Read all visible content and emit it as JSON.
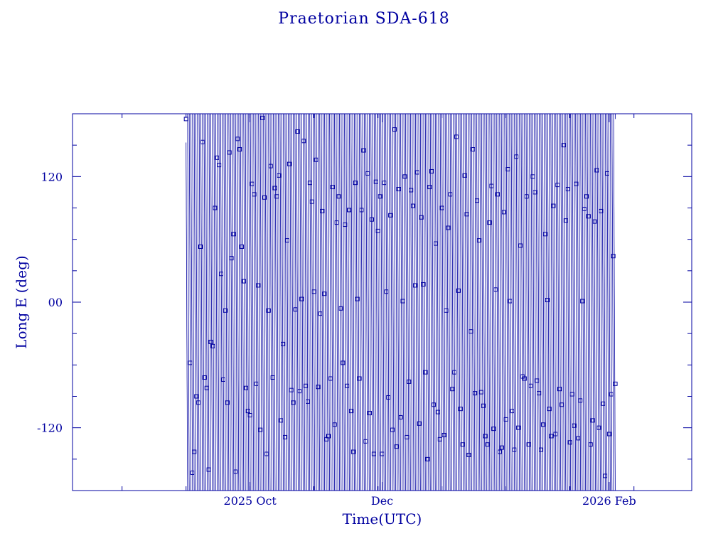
{
  "chart_data": {
    "type": "scatter",
    "title": "Praetorian SDA-618",
    "xlabel": "Time(UTC)",
    "ylabel": "Long E (deg)",
    "ylim": [
      -180,
      180
    ],
    "xlim_days": [
      0,
      300
    ],
    "y_ticks": [
      {
        "value": 120,
        "label": "120"
      },
      {
        "value": 0,
        "label": "00"
      },
      {
        "value": -120,
        "label": "-120"
      }
    ],
    "x_ticks": [
      {
        "value": 86,
        "label": "2025 Oct"
      },
      {
        "value": 150,
        "label": "Dec"
      },
      {
        "value": 260,
        "label": "2026 Feb"
      }
    ],
    "data_window_days": [
      55,
      263
    ],
    "series": [
      {
        "marker": "square",
        "line": "connected",
        "color": "#0000a0",
        "description_points": "longitude wraps rapidly across -180..180 every ~0.8 day; sampled markers listed",
        "points": [
          [
            55,
            175
          ],
          [
            57,
            -58
          ],
          [
            58,
            -163
          ],
          [
            59,
            -143
          ],
          [
            60,
            -90
          ],
          [
            61,
            -96
          ],
          [
            62,
            53
          ],
          [
            63,
            153
          ],
          [
            64,
            -72
          ],
          [
            65,
            -82
          ],
          [
            66,
            -160
          ],
          [
            67,
            -38
          ],
          [
            68,
            -42
          ],
          [
            69,
            90
          ],
          [
            70,
            138
          ],
          [
            71,
            131
          ],
          [
            72,
            27
          ],
          [
            73,
            -74
          ],
          [
            74,
            -8
          ],
          [
            75,
            -96
          ],
          [
            76,
            143
          ],
          [
            77,
            42
          ],
          [
            78,
            65
          ],
          [
            79,
            -162
          ],
          [
            80,
            156
          ],
          [
            81,
            146
          ],
          [
            82,
            53
          ],
          [
            83,
            20
          ],
          [
            84,
            -82
          ],
          [
            85,
            -104
          ],
          [
            86,
            -108
          ],
          [
            87,
            113
          ],
          [
            88,
            103
          ],
          [
            89,
            -78
          ],
          [
            90,
            16
          ],
          [
            91,
            -122
          ],
          [
            92,
            176
          ],
          [
            93,
            100
          ],
          [
            94,
            -145
          ],
          [
            95,
            -8
          ],
          [
            96,
            130
          ],
          [
            97,
            -72
          ],
          [
            98,
            109
          ],
          [
            99,
            101
          ],
          [
            100,
            121
          ],
          [
            101,
            -113
          ],
          [
            102,
            -40
          ],
          [
            103,
            -129
          ],
          [
            104,
            59
          ],
          [
            105,
            132
          ],
          [
            106,
            -84
          ],
          [
            107,
            -96
          ],
          [
            108,
            -7
          ],
          [
            109,
            163
          ],
          [
            110,
            -85
          ],
          [
            111,
            3
          ],
          [
            112,
            154
          ],
          [
            113,
            -80
          ],
          [
            114,
            -95
          ],
          [
            115,
            114
          ],
          [
            116,
            96
          ],
          [
            117,
            10
          ],
          [
            118,
            136
          ],
          [
            119,
            -81
          ],
          [
            120,
            -11
          ],
          [
            121,
            87
          ],
          [
            122,
            8
          ],
          [
            123,
            -131
          ],
          [
            124,
            -128
          ],
          [
            125,
            -73
          ],
          [
            126,
            110
          ],
          [
            127,
            -117
          ],
          [
            128,
            76
          ],
          [
            129,
            101
          ],
          [
            130,
            -6
          ],
          [
            131,
            -58
          ],
          [
            132,
            74
          ],
          [
            133,
            -80
          ],
          [
            134,
            88
          ],
          [
            135,
            -104
          ],
          [
            136,
            -143
          ],
          [
            137,
            114
          ],
          [
            138,
            3
          ],
          [
            139,
            -73
          ],
          [
            140,
            88
          ],
          [
            141,
            145
          ],
          [
            142,
            -133
          ],
          [
            143,
            123
          ],
          [
            144,
            -106
          ],
          [
            145,
            79
          ],
          [
            146,
            -145
          ],
          [
            147,
            115
          ],
          [
            148,
            68
          ],
          [
            149,
            101
          ],
          [
            150,
            -145
          ],
          [
            151,
            114
          ],
          [
            152,
            10
          ],
          [
            153,
            -91
          ],
          [
            154,
            83
          ],
          [
            155,
            -122
          ],
          [
            156,
            165
          ],
          [
            157,
            -138
          ],
          [
            158,
            108
          ],
          [
            159,
            -110
          ],
          [
            160,
            1
          ],
          [
            161,
            120
          ],
          [
            162,
            -129
          ],
          [
            163,
            -76
          ],
          [
            164,
            107
          ],
          [
            165,
            92
          ],
          [
            166,
            16
          ],
          [
            167,
            124
          ],
          [
            168,
            -116
          ],
          [
            169,
            81
          ],
          [
            170,
            17
          ],
          [
            171,
            -67
          ],
          [
            172,
            -150
          ],
          [
            173,
            110
          ],
          [
            174,
            125
          ],
          [
            175,
            -98
          ],
          [
            176,
            56
          ],
          [
            177,
            -105
          ],
          [
            178,
            -131
          ],
          [
            179,
            90
          ],
          [
            180,
            -127
          ],
          [
            181,
            -8
          ],
          [
            182,
            71
          ],
          [
            183,
            103
          ],
          [
            184,
            -83
          ],
          [
            185,
            -67
          ],
          [
            186,
            158
          ],
          [
            187,
            11
          ],
          [
            188,
            -102
          ],
          [
            189,
            -136
          ],
          [
            190,
            121
          ],
          [
            191,
            84
          ],
          [
            192,
            -146
          ],
          [
            193,
            -28
          ],
          [
            194,
            146
          ],
          [
            195,
            -87
          ],
          [
            196,
            97
          ],
          [
            197,
            59
          ],
          [
            198,
            -86
          ],
          [
            199,
            -99
          ],
          [
            200,
            -128
          ],
          [
            201,
            -136
          ],
          [
            202,
            76
          ],
          [
            203,
            111
          ],
          [
            204,
            -121
          ],
          [
            205,
            12
          ],
          [
            206,
            103
          ],
          [
            207,
            -143
          ],
          [
            208,
            -139
          ],
          [
            209,
            86
          ],
          [
            210,
            -112
          ],
          [
            211,
            127
          ],
          [
            212,
            1
          ],
          [
            213,
            -104
          ],
          [
            214,
            -141
          ],
          [
            215,
            139
          ],
          [
            216,
            -120
          ],
          [
            217,
            54
          ],
          [
            218,
            -71
          ],
          [
            219,
            -73
          ],
          [
            220,
            101
          ],
          [
            221,
            -136
          ],
          [
            222,
            -80
          ],
          [
            223,
            120
          ],
          [
            224,
            105
          ],
          [
            225,
            -75
          ],
          [
            226,
            -87
          ],
          [
            227,
            -141
          ],
          [
            228,
            -117
          ],
          [
            229,
            65
          ],
          [
            230,
            2
          ],
          [
            231,
            -102
          ],
          [
            232,
            -128
          ],
          [
            233,
            92
          ],
          [
            234,
            -126
          ],
          [
            235,
            112
          ],
          [
            236,
            -83
          ],
          [
            237,
            -98
          ],
          [
            238,
            150
          ],
          [
            239,
            78
          ],
          [
            240,
            108
          ],
          [
            241,
            -134
          ],
          [
            242,
            -88
          ],
          [
            243,
            -118
          ],
          [
            244,
            113
          ],
          [
            245,
            -130
          ],
          [
            246,
            -94
          ],
          [
            247,
            1
          ],
          [
            248,
            89
          ],
          [
            249,
            101
          ],
          [
            250,
            82
          ],
          [
            251,
            -136
          ],
          [
            252,
            -113
          ],
          [
            253,
            77
          ],
          [
            254,
            126
          ],
          [
            255,
            -120
          ],
          [
            256,
            87
          ],
          [
            257,
            -97
          ],
          [
            258,
            -166
          ],
          [
            259,
            123
          ],
          [
            260,
            -126
          ],
          [
            261,
            -88
          ],
          [
            262,
            44
          ],
          [
            263,
            -78
          ]
        ]
      }
    ],
    "grid": false,
    "legend": "none"
  }
}
